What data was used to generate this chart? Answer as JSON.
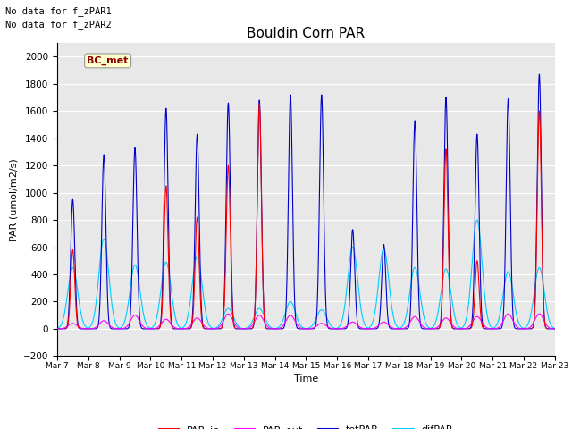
{
  "title": "Bouldin Corn PAR",
  "xlabel": "Time",
  "ylabel": "PAR (umol/m2/s)",
  "ylim": [
    -200,
    2100
  ],
  "yticks": [
    -200,
    0,
    200,
    400,
    600,
    800,
    1000,
    1200,
    1400,
    1600,
    1800,
    2000
  ],
  "no_data_text_1": "No data for f_zPAR1",
  "no_data_text_2": "No data for f_zPAR2",
  "legend_label": "BC_met",
  "legend_label_color": "#8B0000",
  "legend_label_bg": "#FFFFCC",
  "colors": {
    "PAR_in": "#FF0000",
    "PAR_out": "#FF00FF",
    "totPAR": "#0000CC",
    "difPAR": "#00CCFF"
  },
  "bg_color": "#E8E8E8",
  "grid_color": "#FFFFFF",
  "day_peaks_tot": [
    950,
    1280,
    1330,
    1620,
    1430,
    1660,
    1680,
    1720,
    1720,
    730,
    620,
    1530,
    1700,
    1430,
    1690,
    1870
  ],
  "day_peaks_dif": [
    450,
    660,
    470,
    490,
    530,
    150,
    150,
    200,
    140,
    600,
    590,
    450,
    440,
    800,
    420,
    450
  ],
  "day_peaks_in": [
    580,
    0,
    0,
    1050,
    820,
    1200,
    1650,
    0,
    0,
    0,
    0,
    0,
    1320,
    500,
    0,
    1600
  ],
  "day_peaks_out": [
    40,
    60,
    100,
    70,
    80,
    110,
    100,
    100,
    40,
    50,
    50,
    90,
    80,
    90,
    110,
    110
  ]
}
